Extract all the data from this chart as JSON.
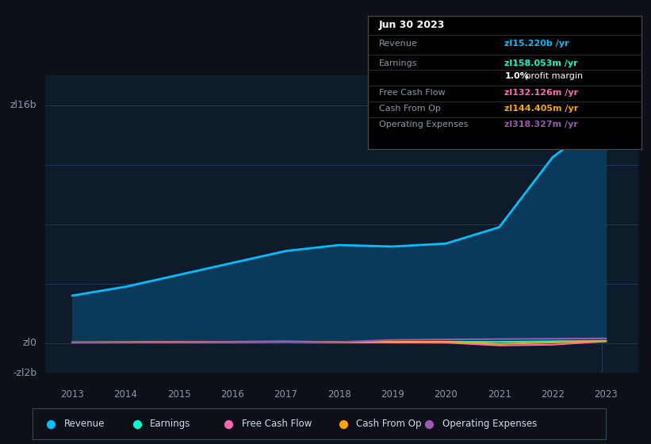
{
  "bg_color": "#0d1117",
  "plot_bg_color": "#0d1b2a",
  "grid_color": "#1e3a5f",
  "text_color": "#8899aa",
  "years": [
    2013,
    2014,
    2015,
    2016,
    2017,
    2018,
    2019,
    2020,
    2021,
    2022,
    2023
  ],
  "revenue": [
    3.2,
    3.8,
    4.6,
    5.4,
    6.2,
    6.6,
    6.5,
    6.7,
    7.8,
    12.5,
    15.2
  ],
  "earnings": [
    0.05,
    0.06,
    0.08,
    0.09,
    0.1,
    0.08,
    0.09,
    0.1,
    0.09,
    0.13,
    0.158
  ],
  "free_cash_flow": [
    0.04,
    0.05,
    0.07,
    0.08,
    0.09,
    0.07,
    0.05,
    0.04,
    -0.15,
    -0.1,
    0.132
  ],
  "cash_from_op": [
    0.06,
    0.07,
    0.09,
    0.1,
    0.12,
    0.08,
    0.09,
    0.1,
    -0.05,
    0.05,
    0.144
  ],
  "operating_expenses": [
    0.05,
    0.06,
    0.08,
    0.09,
    0.1,
    0.08,
    0.22,
    0.25,
    0.28,
    0.3,
    0.318
  ],
  "ylim_min": -2.0,
  "ylim_max": 18.0,
  "xmin": 2012.5,
  "xmax": 2023.6,
  "revenue_color": "#00bfff",
  "revenue_fill": "#0a3a5a",
  "earnings_color": "#00ffcc",
  "free_cash_flow_color": "#ff69b4",
  "cash_from_op_color": "#ffa500",
  "operating_expenses_color": "#9b59b6",
  "tooltip_border": "#444444",
  "tooltip_title": "Jun 30 2023",
  "tooltip_revenue_label": "Revenue",
  "tooltip_revenue_value": "zl15.220b /yr",
  "tooltip_revenue_color": "#00bfff",
  "tooltip_earnings_label": "Earnings",
  "tooltip_earnings_value": "zl158.053m /yr",
  "tooltip_earnings_color": "#00ffcc",
  "tooltip_margin_bold": "1.0%",
  "tooltip_margin_rest": " profit margin",
  "tooltip_fcf_label": "Free Cash Flow",
  "tooltip_fcf_value": "zl132.126m /yr",
  "tooltip_fcf_color": "#ff69b4",
  "tooltip_cfo_label": "Cash From Op",
  "tooltip_cfo_value": "zl144.405m /yr",
  "tooltip_cfo_color": "#ffa500",
  "tooltip_opex_label": "Operating Expenses",
  "tooltip_opex_value": "zl318.327m /yr",
  "tooltip_opex_color": "#9b59b6",
  "legend_labels": [
    "Revenue",
    "Earnings",
    "Free Cash Flow",
    "Cash From Op",
    "Operating Expenses"
  ],
  "legend_colors": [
    "#00bfff",
    "#00ffcc",
    "#ff69b4",
    "#ffa500",
    "#9b59b6"
  ],
  "xtick_years": [
    2013,
    2014,
    2015,
    2016,
    2017,
    2018,
    2019,
    2020,
    2021,
    2022,
    2023
  ]
}
